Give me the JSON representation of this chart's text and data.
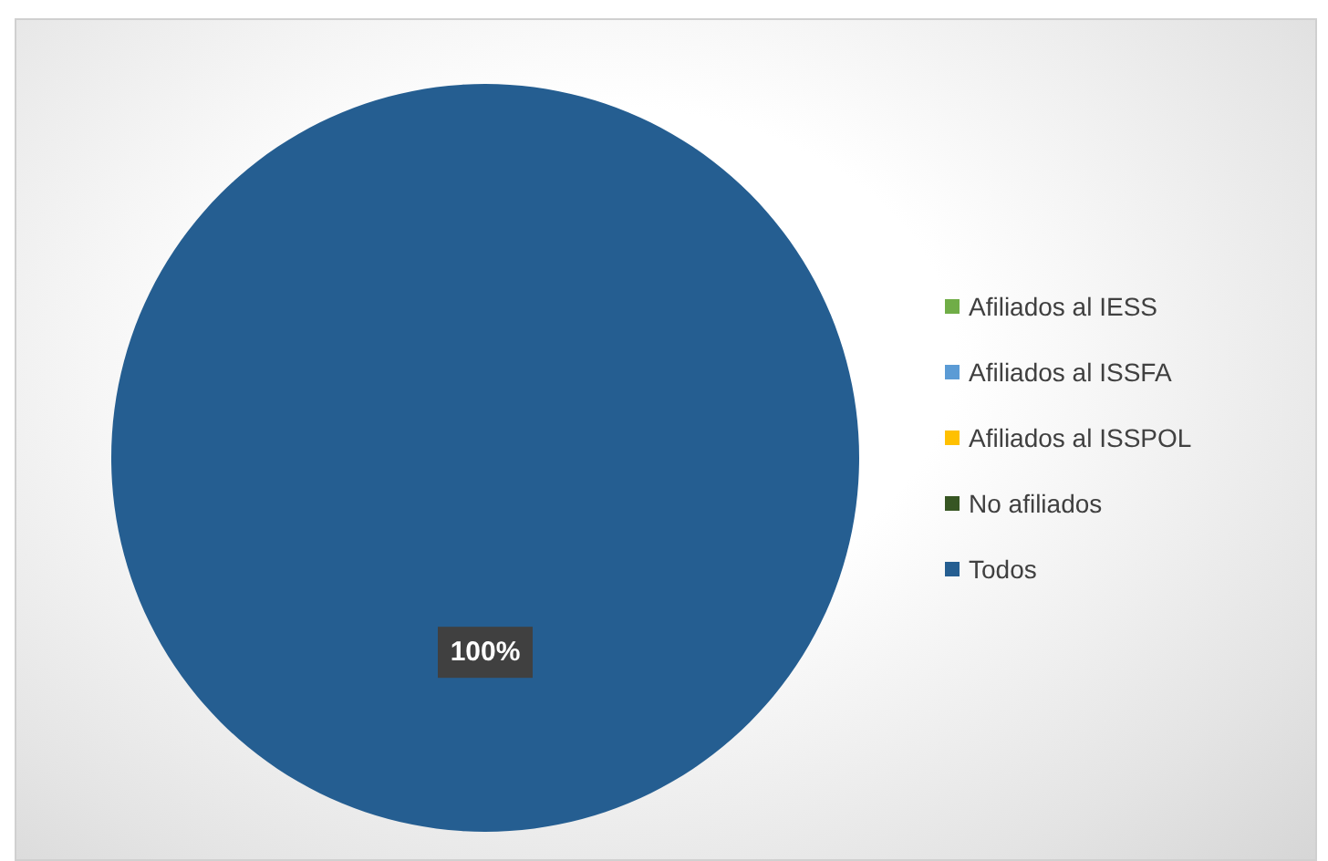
{
  "chart_data": {
    "type": "pie",
    "categories": [
      "Afiliados al IESS",
      "Afiliados al ISSFA",
      "Afiliados al ISSPOL",
      "No afiliados",
      "Todos"
    ],
    "values": [
      0,
      0,
      0,
      0,
      100
    ],
    "colors": [
      "#70ad47",
      "#5b9bd5",
      "#ffc000",
      "#375623",
      "#255e91"
    ],
    "value_labels": [
      null,
      null,
      null,
      null,
      "100%"
    ],
    "legend": "right"
  }
}
